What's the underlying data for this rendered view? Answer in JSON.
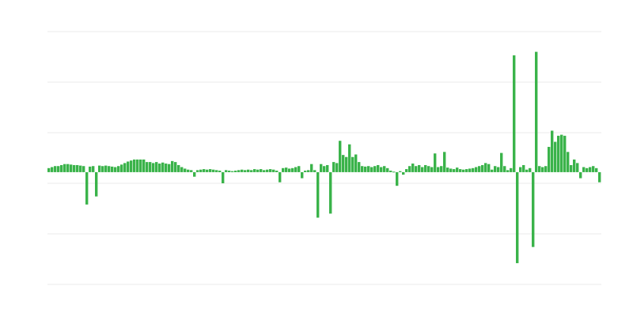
{
  "chart_data": {
    "type": "bar",
    "title": "",
    "xlabel": "",
    "ylabel": "",
    "ylim": [
      -2.22,
      2.78
    ],
    "yticks": [
      2.78,
      1.78,
      0.78,
      -0.22,
      -1.22,
      -2.22
    ],
    "grid": true,
    "legend": "none",
    "bar_color": "#3ab34a",
    "grid_color": "#ebebeb",
    "values": [
      0.08,
      0.1,
      0.12,
      0.12,
      0.14,
      0.16,
      0.16,
      0.15,
      0.14,
      0.14,
      0.13,
      0.12,
      -0.64,
      0.11,
      0.12,
      -0.48,
      0.13,
      0.12,
      0.13,
      0.12,
      0.11,
      0.1,
      0.12,
      0.15,
      0.18,
      0.21,
      0.23,
      0.25,
      0.25,
      0.25,
      0.25,
      0.2,
      0.2,
      0.18,
      0.2,
      0.17,
      0.19,
      0.17,
      0.16,
      0.22,
      0.2,
      0.14,
      0.1,
      0.07,
      0.05,
      0.04,
      -0.09,
      0.04,
      0.05,
      0.06,
      0.05,
      0.06,
      0.05,
      0.04,
      0.03,
      -0.22,
      0.04,
      0.03,
      0.02,
      0.03,
      0.04,
      0.05,
      0.04,
      0.05,
      0.04,
      0.06,
      0.05,
      0.06,
      0.04,
      0.05,
      0.06,
      0.05,
      0.03,
      -0.2,
      0.08,
      0.09,
      0.07,
      0.08,
      0.1,
      0.12,
      -0.12,
      0.03,
      0.04,
      0.16,
      0.04,
      -0.9,
      0.16,
      0.12,
      0.14,
      -0.82,
      0.2,
      0.18,
      0.62,
      0.34,
      0.3,
      0.55,
      0.3,
      0.35,
      0.2,
      0.12,
      0.11,
      0.12,
      0.1,
      0.12,
      0.14,
      0.1,
      0.12,
      0.08,
      0.03,
      0.01,
      -0.27,
      0.02,
      -0.05,
      0.06,
      0.12,
      0.17,
      0.12,
      0.14,
      0.1,
      0.14,
      0.12,
      0.1,
      0.37,
      0.1,
      0.12,
      0.4,
      0.09,
      0.07,
      0.06,
      0.09,
      0.06,
      0.05,
      0.06,
      0.07,
      0.08,
      0.1,
      0.12,
      0.14,
      0.18,
      0.16,
      0.05,
      0.12,
      0.1,
      0.38,
      0.12,
      0.04,
      0.08,
      2.31,
      -1.8,
      0.1,
      0.14,
      0.05,
      0.08,
      -1.48,
      2.38,
      0.12,
      0.1,
      0.12,
      0.5,
      0.82,
      0.6,
      0.72,
      0.74,
      0.72,
      0.4,
      0.14,
      0.25,
      0.18,
      -0.12,
      0.1,
      0.08,
      0.1,
      0.12,
      0.08,
      -0.2
    ]
  }
}
